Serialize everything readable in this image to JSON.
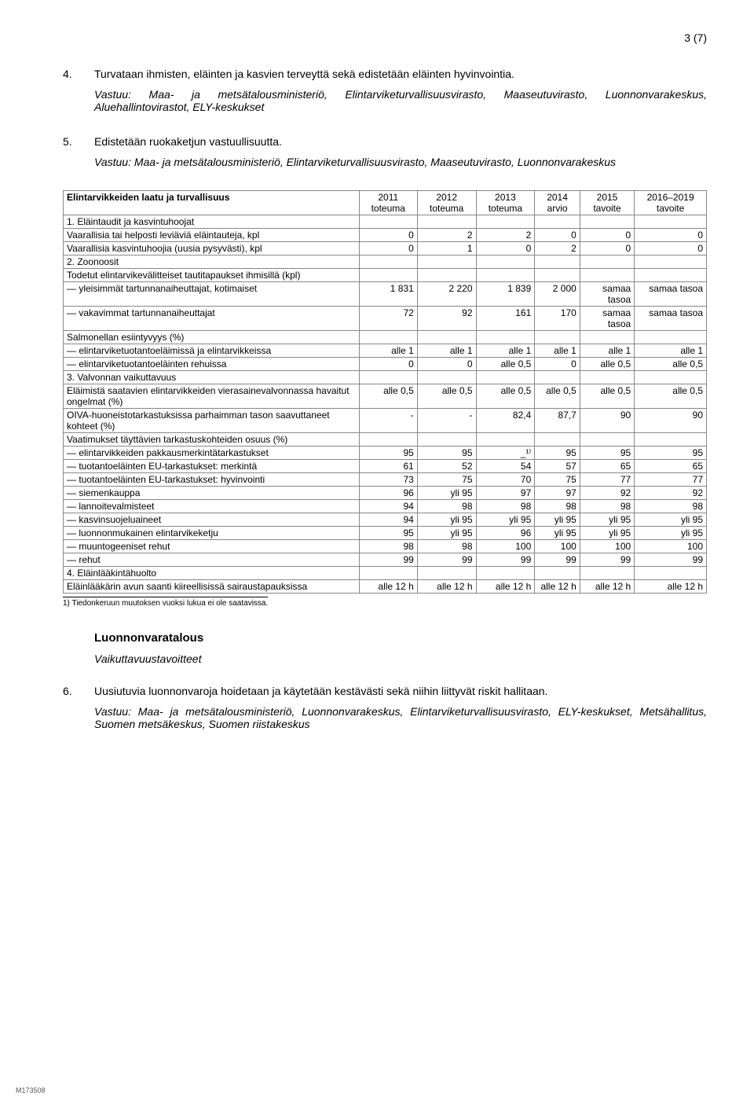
{
  "page_number": "3 (7)",
  "item4": {
    "num": "4.",
    "text": "Turvataan ihmisten, eläinten ja kasvien terveyttä sekä edistetään eläinten hyvinvointia.",
    "vastuu_label": "Vastuu:",
    "vastuu_body": "Maa- ja metsätalousministeriö, Elintarviketurvallisuusvirasto, Maaseutuvirasto, Luonnonvarakeskus, Aluehallintovirastot, ELY-keskukset"
  },
  "item5": {
    "num": "5.",
    "text": "Edistetään ruokaketjun vastuullisuutta.",
    "vastuu_label": "Vastuu:",
    "vastuu_body": "Maa- ja metsätalousministeriö, Elintarviketurvallisuusvirasto, Maaseutuvirasto, Luonnonvarakeskus"
  },
  "table": {
    "title": "Elintarvikkeiden laatu ja turvallisuus",
    "head": {
      "c1": "2011 toteuma",
      "c2": "2012 toteuma",
      "c3": "2013 toteuma",
      "c4": "2014 arvio",
      "c5": "2015 tavoite",
      "c6": "2016–2019 tavoite"
    },
    "rows": [
      {
        "label": "1. Eläintaudit ja kasvintuhoojat",
        "v": [
          "",
          "",
          "",
          "",
          "",
          ""
        ]
      },
      {
        "label": "Vaarallisia tai helposti leviäviä eläintauteja, kpl",
        "v": [
          "0",
          "2",
          "2",
          "0",
          "0",
          "0"
        ]
      },
      {
        "label": "Vaarallisia kasvintuhoojia (uusia pysyvästi), kpl",
        "v": [
          "0",
          "1",
          "0",
          "2",
          "0",
          "0"
        ]
      },
      {
        "label": "2. Zoonoosit",
        "v": [
          "",
          "",
          "",
          "",
          "",
          ""
        ]
      },
      {
        "label": "Todetut elintarvikevälitteiset tautitapaukset ihmisillä (kpl)",
        "v": [
          "",
          "",
          "",
          "",
          "",
          ""
        ]
      },
      {
        "label": "— yleisimmät tartunnanaiheuttajat, kotimaiset",
        "v": [
          "1 831",
          "2 220",
          "1 839",
          "2 000",
          "samaa tasoa",
          "samaa tasoa"
        ]
      },
      {
        "label": "— vakavimmat tartunnanaiheuttajat",
        "v": [
          "72",
          "92",
          "161",
          "170",
          "samaa tasoa",
          "samaa tasoa"
        ]
      },
      {
        "label": "Salmonellan esiintyvyys (%)",
        "v": [
          "",
          "",
          "",
          "",
          "",
          ""
        ]
      },
      {
        "label": "— elintarviketuotantoeläimissä ja elintarvikkeissa",
        "v": [
          "alle 1",
          "alle 1",
          "alle 1",
          "alle 1",
          "alle 1",
          "alle 1"
        ]
      },
      {
        "label": "— elintarviketuotantoeläinten rehuissa",
        "v": [
          "0",
          "0",
          "alle 0,5",
          "0",
          "alle 0,5",
          "alle 0,5"
        ]
      },
      {
        "label": "3. Valvonnan vaikuttavuus",
        "v": [
          "",
          "",
          "",
          "",
          "",
          ""
        ]
      },
      {
        "label": "Eläimistä saatavien elintarvikkeiden vierasainevalvonnassa havaitut ongelmat (%)",
        "v": [
          "alle 0,5",
          "alle 0,5",
          "alle 0,5",
          "alle 0,5",
          "alle 0,5",
          "alle 0,5"
        ]
      },
      {
        "label": "OIVA-huoneistotarkastuksissa parhaimman tason saavuttaneet kohteet (%)",
        "v": [
          "-",
          "-",
          "82,4",
          "87,7",
          "90",
          "90"
        ]
      },
      {
        "label": "Vaatimukset täyttävien tarkastuskohteiden osuus (%)",
        "v": [
          "",
          "",
          "",
          "",
          "",
          ""
        ]
      },
      {
        "label": "— elintarvikkeiden pakkausmerkintätarkastukset",
        "v": [
          "95",
          "95",
          "_¹⁾",
          "95",
          "95",
          "95"
        ]
      },
      {
        "label": "— tuotantoeläinten EU-tarkastukset: merkintä",
        "v": [
          "61",
          "52",
          "54",
          "57",
          "65",
          "65"
        ]
      },
      {
        "label": "— tuotantoeläinten EU-tarkastukset: hyvinvointi",
        "v": [
          "73",
          "75",
          "70",
          "75",
          "77",
          "77"
        ]
      },
      {
        "label": "— siemenkauppa",
        "v": [
          "96",
          "yli 95",
          "97",
          "97",
          "92",
          "92"
        ]
      },
      {
        "label": "— lannoitevalmisteet",
        "v": [
          "94",
          "98",
          "98",
          "98",
          "98",
          "98"
        ]
      },
      {
        "label": "— kasvinsuojeluaineet",
        "v": [
          "94",
          "yli 95",
          "yli 95",
          "yli 95",
          "yli 95",
          "yli 95"
        ]
      },
      {
        "label": "— luonnonmukainen elintarvikeketju",
        "v": [
          "95",
          "yli 95",
          "96",
          "yli 95",
          "yli 95",
          "yli 95"
        ]
      },
      {
        "label": "— muuntogeeniset rehut",
        "v": [
          "98",
          "98",
          "100",
          "100",
          "100",
          "100"
        ]
      },
      {
        "label": "— rehut",
        "v": [
          "99",
          "99",
          "99",
          "99",
          "99",
          "99"
        ]
      },
      {
        "label": "4. Eläinlääkintähuolto",
        "v": [
          "",
          "",
          "",
          "",
          "",
          ""
        ]
      },
      {
        "label": "Eläinlääkärin avun saanti kiireellisissä sairaustapauksissa",
        "v": [
          "alle 12 h",
          "alle 12 h",
          "alle 12 h",
          "alle 12 h",
          "alle 12 h",
          "alle 12 h"
        ]
      }
    ]
  },
  "footnote": "1)  Tiedonkeruun muutoksen vuoksi lukua ei ole saatavissa.",
  "section_heading": "Luonnonvaratalous",
  "section_sub": "Vaikuttavuustavoitteet",
  "item6": {
    "num": "6.",
    "text": "Uusiutuvia luonnonvaroja hoidetaan ja käytetään kestävästi sekä niihin liittyvät riskit hallitaan.",
    "vastuu_label": "Vastuu:",
    "vastuu_body": "Maa- ja metsätalousministeriö, Luonnonvarakeskus, Elintarviketurvallisuusvirasto, ELY-keskukset, Metsähallitus, Suomen metsäkeskus, Suomen riistakeskus"
  },
  "docid": "M173508"
}
